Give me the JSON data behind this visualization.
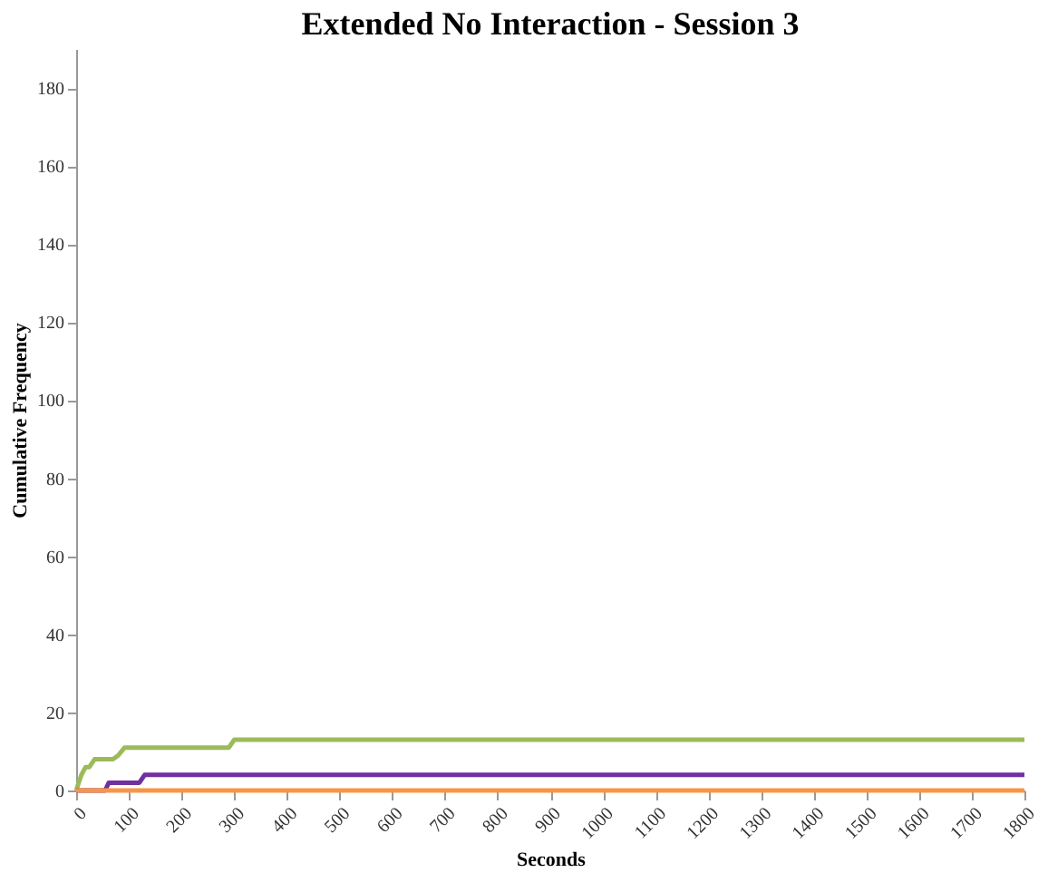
{
  "chart_data": {
    "type": "line",
    "title": "Extended No Interaction - Session 3",
    "xlabel": "Seconds",
    "ylabel": "Cumulative Frequency",
    "xlim": [
      0,
      1800
    ],
    "xticks": [
      0,
      100,
      200,
      300,
      400,
      500,
      600,
      700,
      800,
      900,
      1000,
      1100,
      1200,
      1300,
      1400,
      1500,
      1600,
      1700,
      1800
    ],
    "ylim": [
      0,
      190
    ],
    "yticks": [
      0,
      20,
      40,
      60,
      80,
      100,
      120,
      140,
      160,
      180
    ],
    "grid": false,
    "legend": false,
    "marker": "none",
    "line_style": "solid",
    "series": [
      {
        "color": "#9bbb59",
        "x": [
          0,
          10,
          18,
          25,
          35,
          70,
          80,
          92,
          290,
          300,
          1800
        ],
        "values": [
          0,
          4,
          6,
          6,
          8,
          8,
          9,
          11,
          11,
          13,
          13
        ]
      },
      {
        "color": "#7030a0",
        "x": [
          0,
          55,
          62,
          120,
          130,
          1800
        ],
        "values": [
          0,
          0,
          2,
          2,
          4,
          4
        ]
      },
      {
        "color": "#f79646",
        "x": [
          0,
          1800
        ],
        "values": [
          0,
          0
        ]
      }
    ]
  }
}
